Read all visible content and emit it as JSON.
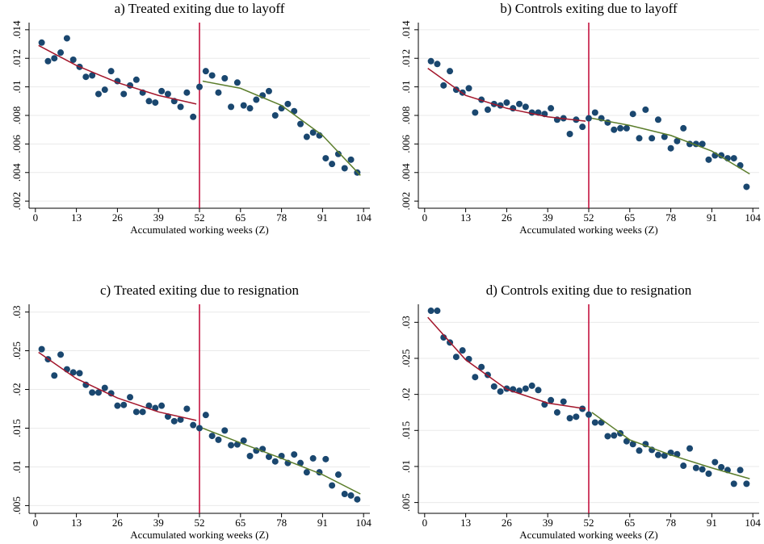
{
  "chart_data": [
    {
      "type": "scatter",
      "title": "a) Treated exiting due to layoff",
      "x_label": "Accumulated working weeks (Z)",
      "xlim": [
        -2,
        106
      ],
      "xticks": [
        0,
        13,
        26,
        39,
        52,
        65,
        78,
        91,
        104
      ],
      "ylim": [
        0.0015,
        0.0145
      ],
      "yticks": [
        {
          "value": 0.002,
          "label": ".002"
        },
        {
          "value": 0.004,
          "label": ".004"
        },
        {
          "value": 0.006,
          "label": ".006"
        },
        {
          "value": 0.008,
          "label": ".008"
        },
        {
          "value": 0.01,
          "label": ".01"
        },
        {
          "value": 0.012,
          "label": ".012"
        },
        {
          "value": 0.014,
          "label": ".014"
        }
      ],
      "grid": true,
      "cutoff": 52,
      "cutoff_color": "#c10534",
      "color": "#1a476f",
      "x": [
        2,
        4,
        6,
        8,
        10,
        12,
        14,
        16,
        18,
        20,
        22,
        24,
        26,
        28,
        30,
        32,
        34,
        36,
        38,
        40,
        42,
        44,
        46,
        48,
        50,
        52,
        54,
        56,
        58,
        60,
        62,
        64,
        66,
        68,
        70,
        72,
        74,
        76,
        78,
        80,
        82,
        84,
        86,
        88,
        90,
        92,
        94,
        96,
        98,
        100,
        102
      ],
      "values": [
        0.0131,
        0.0118,
        0.012,
        0.0124,
        0.0134,
        0.0119,
        0.0114,
        0.0107,
        0.0108,
        0.0095,
        0.0098,
        0.0111,
        0.0104,
        0.0095,
        0.0101,
        0.0105,
        0.0096,
        0.009,
        0.0089,
        0.0097,
        0.0095,
        0.009,
        0.0086,
        0.0096,
        0.0079,
        0.01,
        0.0111,
        0.0108,
        0.0096,
        0.0106,
        0.0086,
        0.0103,
        0.0087,
        0.0085,
        0.0091,
        0.0094,
        0.0097,
        0.008,
        0.0085,
        0.0088,
        0.0083,
        0.0074,
        0.0065,
        0.0068,
        0.0066,
        0.005,
        0.0046,
        0.0053,
        0.0043,
        0.0049,
        0.004
      ],
      "fits": [
        {
          "color": "#a3162b",
          "x": [
            1,
            13,
            26,
            39,
            51
          ],
          "values": [
            0.0129,
            0.0115,
            0.0103,
            0.0094,
            0.0088
          ]
        },
        {
          "color": "#5b7d2b",
          "x": [
            53,
            65,
            78,
            91,
            103
          ],
          "values": [
            0.0104,
            0.0099,
            0.0087,
            0.0066,
            0.0038
          ]
        }
      ]
    },
    {
      "type": "scatter",
      "title": "b) Controls exiting due to layoff",
      "x_label": "Accumulated working weeks (Z)",
      "xlim": [
        -2,
        106
      ],
      "xticks": [
        0,
        13,
        26,
        39,
        52,
        65,
        78,
        91,
        104
      ],
      "ylim": [
        0.0015,
        0.0145
      ],
      "yticks": [
        {
          "value": 0.002,
          "label": ".002"
        },
        {
          "value": 0.004,
          "label": ".004"
        },
        {
          "value": 0.006,
          "label": ".006"
        },
        {
          "value": 0.008,
          "label": ".008"
        },
        {
          "value": 0.01,
          "label": ".01"
        },
        {
          "value": 0.012,
          "label": ".012"
        },
        {
          "value": 0.014,
          "label": ".014"
        }
      ],
      "grid": true,
      "cutoff": 52,
      "cutoff_color": "#c10534",
      "color": "#1a476f",
      "x": [
        2,
        4,
        6,
        8,
        10,
        12,
        14,
        16,
        18,
        20,
        22,
        24,
        26,
        28,
        30,
        32,
        34,
        36,
        38,
        40,
        42,
        44,
        46,
        48,
        50,
        52,
        54,
        56,
        58,
        60,
        62,
        64,
        66,
        68,
        70,
        72,
        74,
        76,
        78,
        80,
        82,
        84,
        86,
        88,
        90,
        92,
        94,
        96,
        98,
        100,
        102
      ],
      "values": [
        0.0118,
        0.0116,
        0.0101,
        0.0111,
        0.0098,
        0.0096,
        0.0099,
        0.0082,
        0.0091,
        0.0084,
        0.0088,
        0.0087,
        0.0089,
        0.0085,
        0.0088,
        0.0086,
        0.0082,
        0.0082,
        0.0081,
        0.0085,
        0.0077,
        0.0078,
        0.0067,
        0.0077,
        0.0072,
        0.0078,
        0.0082,
        0.0078,
        0.0075,
        0.007,
        0.0071,
        0.0071,
        0.0081,
        0.0064,
        0.0084,
        0.0064,
        0.0077,
        0.0065,
        0.0057,
        0.0062,
        0.0071,
        0.006,
        0.006,
        0.006,
        0.0049,
        0.0052,
        0.0052,
        0.005,
        0.005,
        0.0045,
        0.003
      ],
      "fits": [
        {
          "color": "#a3162b",
          "x": [
            1,
            13,
            26,
            39,
            51
          ],
          "values": [
            0.0113,
            0.0094,
            0.0085,
            0.0079,
            0.0076
          ]
        },
        {
          "color": "#5b7d2b",
          "x": [
            53,
            65,
            78,
            91,
            103
          ],
          "values": [
            0.0078,
            0.0073,
            0.0066,
            0.0055,
            0.0039
          ]
        }
      ]
    },
    {
      "type": "scatter",
      "title": "c) Treated exiting due to resignation",
      "x_label": "Accumulated working weeks (Z)",
      "xlim": [
        -2,
        106
      ],
      "xticks": [
        0,
        13,
        26,
        39,
        52,
        65,
        78,
        91,
        104
      ],
      "ylim": [
        0.004,
        0.031
      ],
      "yticks": [
        {
          "value": 0.005,
          "label": ".005"
        },
        {
          "value": 0.01,
          "label": ".01"
        },
        {
          "value": 0.015,
          "label": ".015"
        },
        {
          "value": 0.02,
          "label": ".02"
        },
        {
          "value": 0.025,
          "label": ".025"
        },
        {
          "value": 0.03,
          "label": ".03"
        }
      ],
      "grid": true,
      "cutoff": 52,
      "cutoff_color": "#c10534",
      "color": "#1a476f",
      "x": [
        2,
        4,
        6,
        8,
        10,
        12,
        14,
        16,
        18,
        20,
        22,
        24,
        26,
        28,
        30,
        32,
        34,
        36,
        38,
        40,
        42,
        44,
        46,
        48,
        50,
        52,
        54,
        56,
        58,
        60,
        62,
        64,
        66,
        68,
        70,
        72,
        74,
        76,
        78,
        80,
        82,
        84,
        86,
        88,
        90,
        92,
        94,
        96,
        98,
        100,
        102
      ],
      "values": [
        0.0252,
        0.0239,
        0.0218,
        0.0245,
        0.0226,
        0.0222,
        0.0221,
        0.0206,
        0.0196,
        0.0196,
        0.0202,
        0.0195,
        0.0179,
        0.018,
        0.019,
        0.0171,
        0.0171,
        0.0179,
        0.0176,
        0.0179,
        0.0165,
        0.0159,
        0.0161,
        0.0175,
        0.0154,
        0.015,
        0.0167,
        0.014,
        0.0135,
        0.0147,
        0.0128,
        0.0129,
        0.0134,
        0.0114,
        0.0121,
        0.0123,
        0.0113,
        0.0107,
        0.0114,
        0.0105,
        0.0116,
        0.0105,
        0.0093,
        0.0111,
        0.0093,
        0.011,
        0.0076,
        0.009,
        0.0065,
        0.0063,
        0.0058
      ],
      "fits": [
        {
          "color": "#a3162b",
          "x": [
            1,
            13,
            26,
            39,
            51
          ],
          "values": [
            0.0248,
            0.0214,
            0.0189,
            0.0171,
            0.016
          ]
        },
        {
          "color": "#5b7d2b",
          "x": [
            53,
            65,
            78,
            91,
            103
          ],
          "values": [
            0.015,
            0.0131,
            0.0111,
            0.009,
            0.0065
          ]
        }
      ]
    },
    {
      "type": "scatter",
      "title": "d) Controls exiting due to resignation",
      "x_label": "Accumulated working weeks (Z)",
      "xlim": [
        -2,
        106
      ],
      "xticks": [
        0,
        13,
        26,
        39,
        52,
        65,
        78,
        91,
        104
      ],
      "ylim": [
        0.0035,
        0.0325
      ],
      "yticks": [
        {
          "value": 0.005,
          "label": ".005"
        },
        {
          "value": 0.01,
          "label": ".01"
        },
        {
          "value": 0.015,
          "label": ".015"
        },
        {
          "value": 0.02,
          "label": ".02"
        },
        {
          "value": 0.025,
          "label": ".025"
        },
        {
          "value": 0.03,
          "label": ".03"
        }
      ],
      "grid": true,
      "cutoff": 52,
      "cutoff_color": "#c10534",
      "color": "#1a476f",
      "x": [
        2,
        4,
        6,
        8,
        10,
        12,
        14,
        16,
        18,
        20,
        22,
        24,
        26,
        28,
        30,
        32,
        34,
        36,
        38,
        40,
        42,
        44,
        46,
        48,
        50,
        52,
        54,
        56,
        58,
        60,
        62,
        64,
        66,
        68,
        70,
        72,
        74,
        76,
        78,
        80,
        82,
        84,
        86,
        88,
        90,
        92,
        94,
        96,
        98,
        100,
        102
      ],
      "values": [
        0.0316,
        0.0316,
        0.0279,
        0.0272,
        0.0252,
        0.0261,
        0.0249,
        0.0224,
        0.0238,
        0.0227,
        0.0211,
        0.0204,
        0.0208,
        0.0207,
        0.0205,
        0.0208,
        0.0212,
        0.0206,
        0.0186,
        0.0192,
        0.0175,
        0.019,
        0.0167,
        0.0169,
        0.018,
        0.0172,
        0.0161,
        0.0161,
        0.0142,
        0.0143,
        0.0146,
        0.0135,
        0.0131,
        0.0122,
        0.0131,
        0.0123,
        0.0116,
        0.0115,
        0.0119,
        0.0117,
        0.0101,
        0.0125,
        0.0098,
        0.0096,
        0.009,
        0.0106,
        0.0099,
        0.0095,
        0.0076,
        0.0095,
        0.0076
      ],
      "fits": [
        {
          "color": "#a3162b",
          "x": [
            1,
            13,
            26,
            39,
            51
          ],
          "values": [
            0.0307,
            0.0248,
            0.0207,
            0.0188,
            0.018
          ]
        },
        {
          "color": "#5b7d2b",
          "x": [
            53,
            65,
            78,
            91,
            103
          ],
          "values": [
            0.0175,
            0.0137,
            0.0116,
            0.0098,
            0.0083
          ]
        }
      ]
    }
  ]
}
